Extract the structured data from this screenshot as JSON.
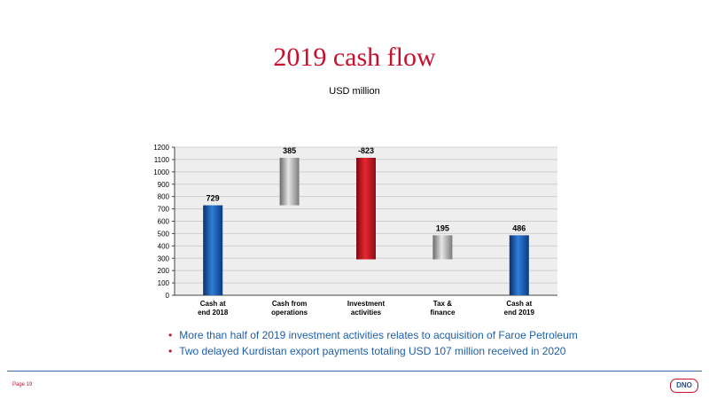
{
  "title": "2019 cash flow",
  "subtitle": "USD million",
  "chart_data": {
    "type": "bar",
    "subtype": "waterfall",
    "categories": [
      "Cash at\nend 2018",
      "Cash from\noperations",
      "Investment\nactivities",
      "Tax &\nfinance",
      "Cash at\nend 2019"
    ],
    "bars": [
      {
        "label": "729",
        "bottom": 0,
        "top": 729,
        "style": "blue"
      },
      {
        "label": "385",
        "bottom": 729,
        "top": 1114,
        "style": "gray"
      },
      {
        "label": "-823",
        "bottom": 291,
        "top": 1114,
        "style": "red"
      },
      {
        "label": "195",
        "bottom": 291,
        "top": 486,
        "style": "gray"
      },
      {
        "label": "486",
        "bottom": 0,
        "top": 486,
        "style": "blue"
      }
    ],
    "yticks": [
      0,
      100,
      200,
      300,
      400,
      500,
      600,
      700,
      800,
      900,
      1000,
      1100,
      1200
    ],
    "ylim": [
      0,
      1200
    ],
    "grid": true,
    "colors": {
      "blue": "#1f5fa8",
      "red": "#c8102e",
      "gray": "#9a9a9a",
      "plot_bg": "#eeeeee",
      "grid": "#cfcfcf"
    }
  },
  "bullets": [
    "More than half of 2019 investment activities relates to acquisition of Faroe Petroleum",
    "Two delayed Kurdistan export payments totaling USD 107 million received in 2020"
  ],
  "bullet_marker": "•",
  "footer": {
    "page": "Page 19",
    "logo": "DNO"
  }
}
